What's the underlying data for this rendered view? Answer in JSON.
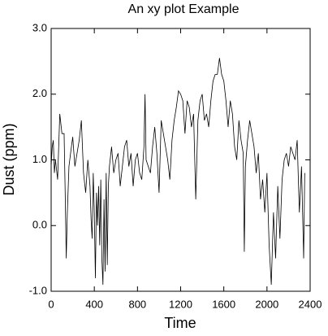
{
  "chart_data": {
    "type": "line",
    "title": "An xy plot Example",
    "xlabel": "Time",
    "ylabel": "Dust (ppm)",
    "x": [
      0,
      10,
      20,
      30,
      40,
      60,
      80,
      100,
      120,
      130,
      140,
      150,
      165,
      180,
      200,
      220,
      240,
      260,
      280,
      290,
      300,
      320,
      340,
      360,
      370,
      380,
      390,
      400,
      410,
      420,
      430,
      440,
      450,
      460,
      470,
      480,
      490,
      500,
      510,
      520,
      530,
      540,
      560,
      580,
      600,
      620,
      640,
      660,
      680,
      700,
      720,
      740,
      760,
      780,
      800,
      820,
      840,
      860,
      870,
      880,
      900,
      920,
      940,
      960,
      980,
      1000,
      1020,
      1040,
      1060,
      1080,
      1100,
      1120,
      1140,
      1160,
      1180,
      1200,
      1220,
      1240,
      1260,
      1280,
      1300,
      1320,
      1340,
      1360,
      1380,
      1400,
      1420,
      1440,
      1460,
      1480,
      1500,
      1520,
      1540,
      1560,
      1580,
      1600,
      1620,
      1640,
      1660,
      1680,
      1700,
      1720,
      1740,
      1760,
      1780,
      1790,
      1800,
      1820,
      1840,
      1860,
      1880,
      1900,
      1920,
      1940,
      1960,
      1980,
      2000,
      2020,
      2040,
      2060,
      2080,
      2100,
      2120,
      2140,
      2160,
      2180,
      2200,
      2220,
      2240,
      2260,
      2280,
      2300,
      2320,
      2340,
      2350
    ],
    "series": [
      {
        "color": "#000000",
        "values": [
          0.9,
          1.2,
          1.3,
          0.8,
          1.0,
          0.7,
          1.7,
          1.4,
          1.4,
          0.5,
          -0.5,
          0.2,
          0.9,
          1.1,
          1.35,
          0.9,
          1.1,
          1.3,
          1.6,
          1.2,
          0.8,
          0.5,
          1.0,
          0.6,
          0.1,
          -0.2,
          0.8,
          0.2,
          -0.8,
          0.5,
          0.0,
          0.6,
          -0.3,
          0.7,
          -0.5,
          -0.9,
          0.4,
          -0.7,
          0.8,
          -0.6,
          0.6,
          0.9,
          1.2,
          0.8,
          1.0,
          1.1,
          0.6,
          0.9,
          1.2,
          1.3,
          0.9,
          1.1,
          0.6,
          1.0,
          1.1,
          0.8,
          0.7,
          1.2,
          2.0,
          1.0,
          0.9,
          0.8,
          1.2,
          1.5,
          1.1,
          0.5,
          1.6,
          1.4,
          1.2,
          1.0,
          0.7,
          1.3,
          1.6,
          1.8,
          2.05,
          2.0,
          1.9,
          1.4,
          1.9,
          1.8,
          1.5,
          1.7,
          0.4,
          1.6,
          1.9,
          2.0,
          1.6,
          1.7,
          1.5,
          1.9,
          2.2,
          2.3,
          2.3,
          2.55,
          2.3,
          2.2,
          1.9,
          1.5,
          1.9,
          1.7,
          1.2,
          1.0,
          1.6,
          1.3,
          1.1,
          -0.4,
          0.9,
          1.3,
          1.6,
          1.4,
          1.2,
          0.8,
          1.1,
          0.4,
          0.7,
          0.2,
          0.8,
          -0.3,
          -0.9,
          0.2,
          -0.5,
          0.6,
          -0.2,
          0.7,
          1.0,
          1.1,
          0.9,
          1.2,
          1.1,
          1.0,
          1.3,
          0.2,
          0.9,
          -0.5,
          0.8
        ]
      }
    ],
    "xlim": [
      0,
      2400
    ],
    "xticks": [
      0,
      400,
      800,
      1200,
      1600,
      2000,
      2400
    ],
    "ylim": [
      -1,
      3
    ],
    "yticks": [
      {
        "value": -1,
        "label": "-1.0"
      },
      {
        "value": 0,
        "label": "0.0"
      },
      {
        "value": 1,
        "label": "1.0"
      },
      {
        "value": 2,
        "label": "2.0"
      },
      {
        "value": 3,
        "label": "3.0"
      }
    ]
  }
}
